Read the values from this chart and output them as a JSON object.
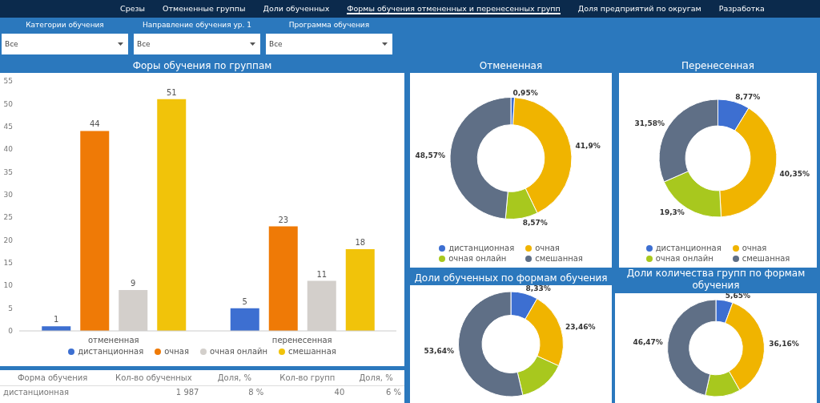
{
  "chart_data": [
    {
      "type": "other",
      "annotations": [
        "Срезы",
        "Отмененные группы",
        "Доли обученных",
        "Формы обучения отмененных и перенесенных групп",
        "Доля предприятий по округам",
        "Разработка",
        "Категории обучения",
        "Направление обучения ур. 1",
        "Программа обучения",
        "Все",
        "Все",
        "Все"
      ]
    },
    {
      "type": "bar",
      "title": "Форы обучения по группам",
      "categories": [
        "отмененная",
        "перенесенная"
      ],
      "series": [
        {
          "name": "дистанционная",
          "color": "#3d6fd1",
          "values": [
            1,
            5
          ]
        },
        {
          "name": "очная",
          "color": "#ef7a06",
          "values": [
            44,
            23
          ]
        },
        {
          "name": "очная онлайн",
          "color": "#d3cfcb",
          "values": [
            9,
            11
          ]
        },
        {
          "name": "смешанная",
          "color": "#f1c30a",
          "values": [
            51,
            18
          ]
        }
      ],
      "ylim": [
        0,
        55
      ],
      "yticks": [
        0,
        5,
        10,
        15,
        20,
        25,
        30,
        35,
        40,
        45,
        50,
        55
      ],
      "data_labels": true,
      "legend": "bottom"
    },
    {
      "type": "donut",
      "title": "Отмененная",
      "categories": [
        "дистанционная",
        "очная",
        "очная онлайн",
        "смешанная"
      ],
      "values": [
        0.95,
        41.9,
        8.57,
        48.57
      ],
      "value_labels": [
        "0,95%",
        "41,9%",
        "8,57%",
        "48,57%"
      ],
      "colors": [
        "#3d6fd1",
        "#f0b400",
        "#a8c81e",
        "#5f6f86"
      ],
      "legend": "bottom"
    },
    {
      "type": "donut",
      "title": "Перенесенная",
      "categories": [
        "дистанционная",
        "очная",
        "очная онлайн",
        "смешанная"
      ],
      "values": [
        8.77,
        40.35,
        19.3,
        31.58
      ],
      "value_labels": [
        "8,77%",
        "40,35%",
        "19,3%",
        "31,58%"
      ],
      "colors": [
        "#3d6fd1",
        "#f0b400",
        "#a8c81e",
        "#5f6f86"
      ],
      "legend": "bottom"
    },
    {
      "type": "donut",
      "title": "Доли обученных по формам обучения",
      "categories": [
        null,
        null,
        null,
        null
      ],
      "values": [
        8.33,
        23.46,
        14.57,
        53.64
      ],
      "value_labels": [
        "8,33%",
        "23,46%",
        null,
        "53,64%"
      ],
      "colors": [
        "#3d6fd1",
        "#f0b400",
        "#a8c81e",
        "#5f6f86"
      ]
    },
    {
      "type": "donut",
      "title": "Доли количества групп по формам обучения",
      "categories": [
        null,
        null,
        null,
        null
      ],
      "values": [
        5.65,
        36.16,
        11.72,
        46.47
      ],
      "value_labels": [
        "5,65%",
        "36,16%",
        null,
        "46,47%"
      ],
      "colors": [
        "#3d6fd1",
        "#f0b400",
        "#a8c81e",
        "#5f6f86"
      ]
    },
    {
      "type": "other",
      "annotations": [
        "Форма обучения",
        "Кол-во обученных",
        "Доля, %",
        "Кол-во групп",
        "Доля, %",
        "дистанционная",
        "1 987",
        "8 %",
        "40",
        "6 %"
      ]
    }
  ]
}
